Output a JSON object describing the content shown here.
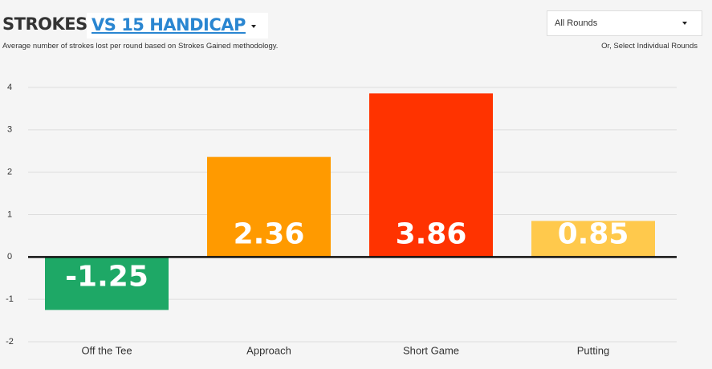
{
  "header": {
    "title": "STROKES",
    "comparison": "VS 15 HANDICAP",
    "subtitle": "Average number of strokes lost per round based on Strokes Gained methodology.",
    "rounds_select": "All Rounds",
    "rounds_hint": "Or, Select Individual Rounds"
  },
  "chart_data": {
    "type": "bar",
    "categories": [
      "Off the Tee",
      "Approach",
      "Short Game",
      "Putting"
    ],
    "values": [
      -1.25,
      2.36,
      3.86,
      0.85
    ],
    "colors": [
      "#1ea866",
      "#ff9a00",
      "#ff3300",
      "#ffc94c"
    ],
    "ylim": [
      -2,
      4
    ],
    "yticks": [
      -2,
      -1,
      0,
      1,
      2,
      3,
      4
    ],
    "grid": true
  }
}
